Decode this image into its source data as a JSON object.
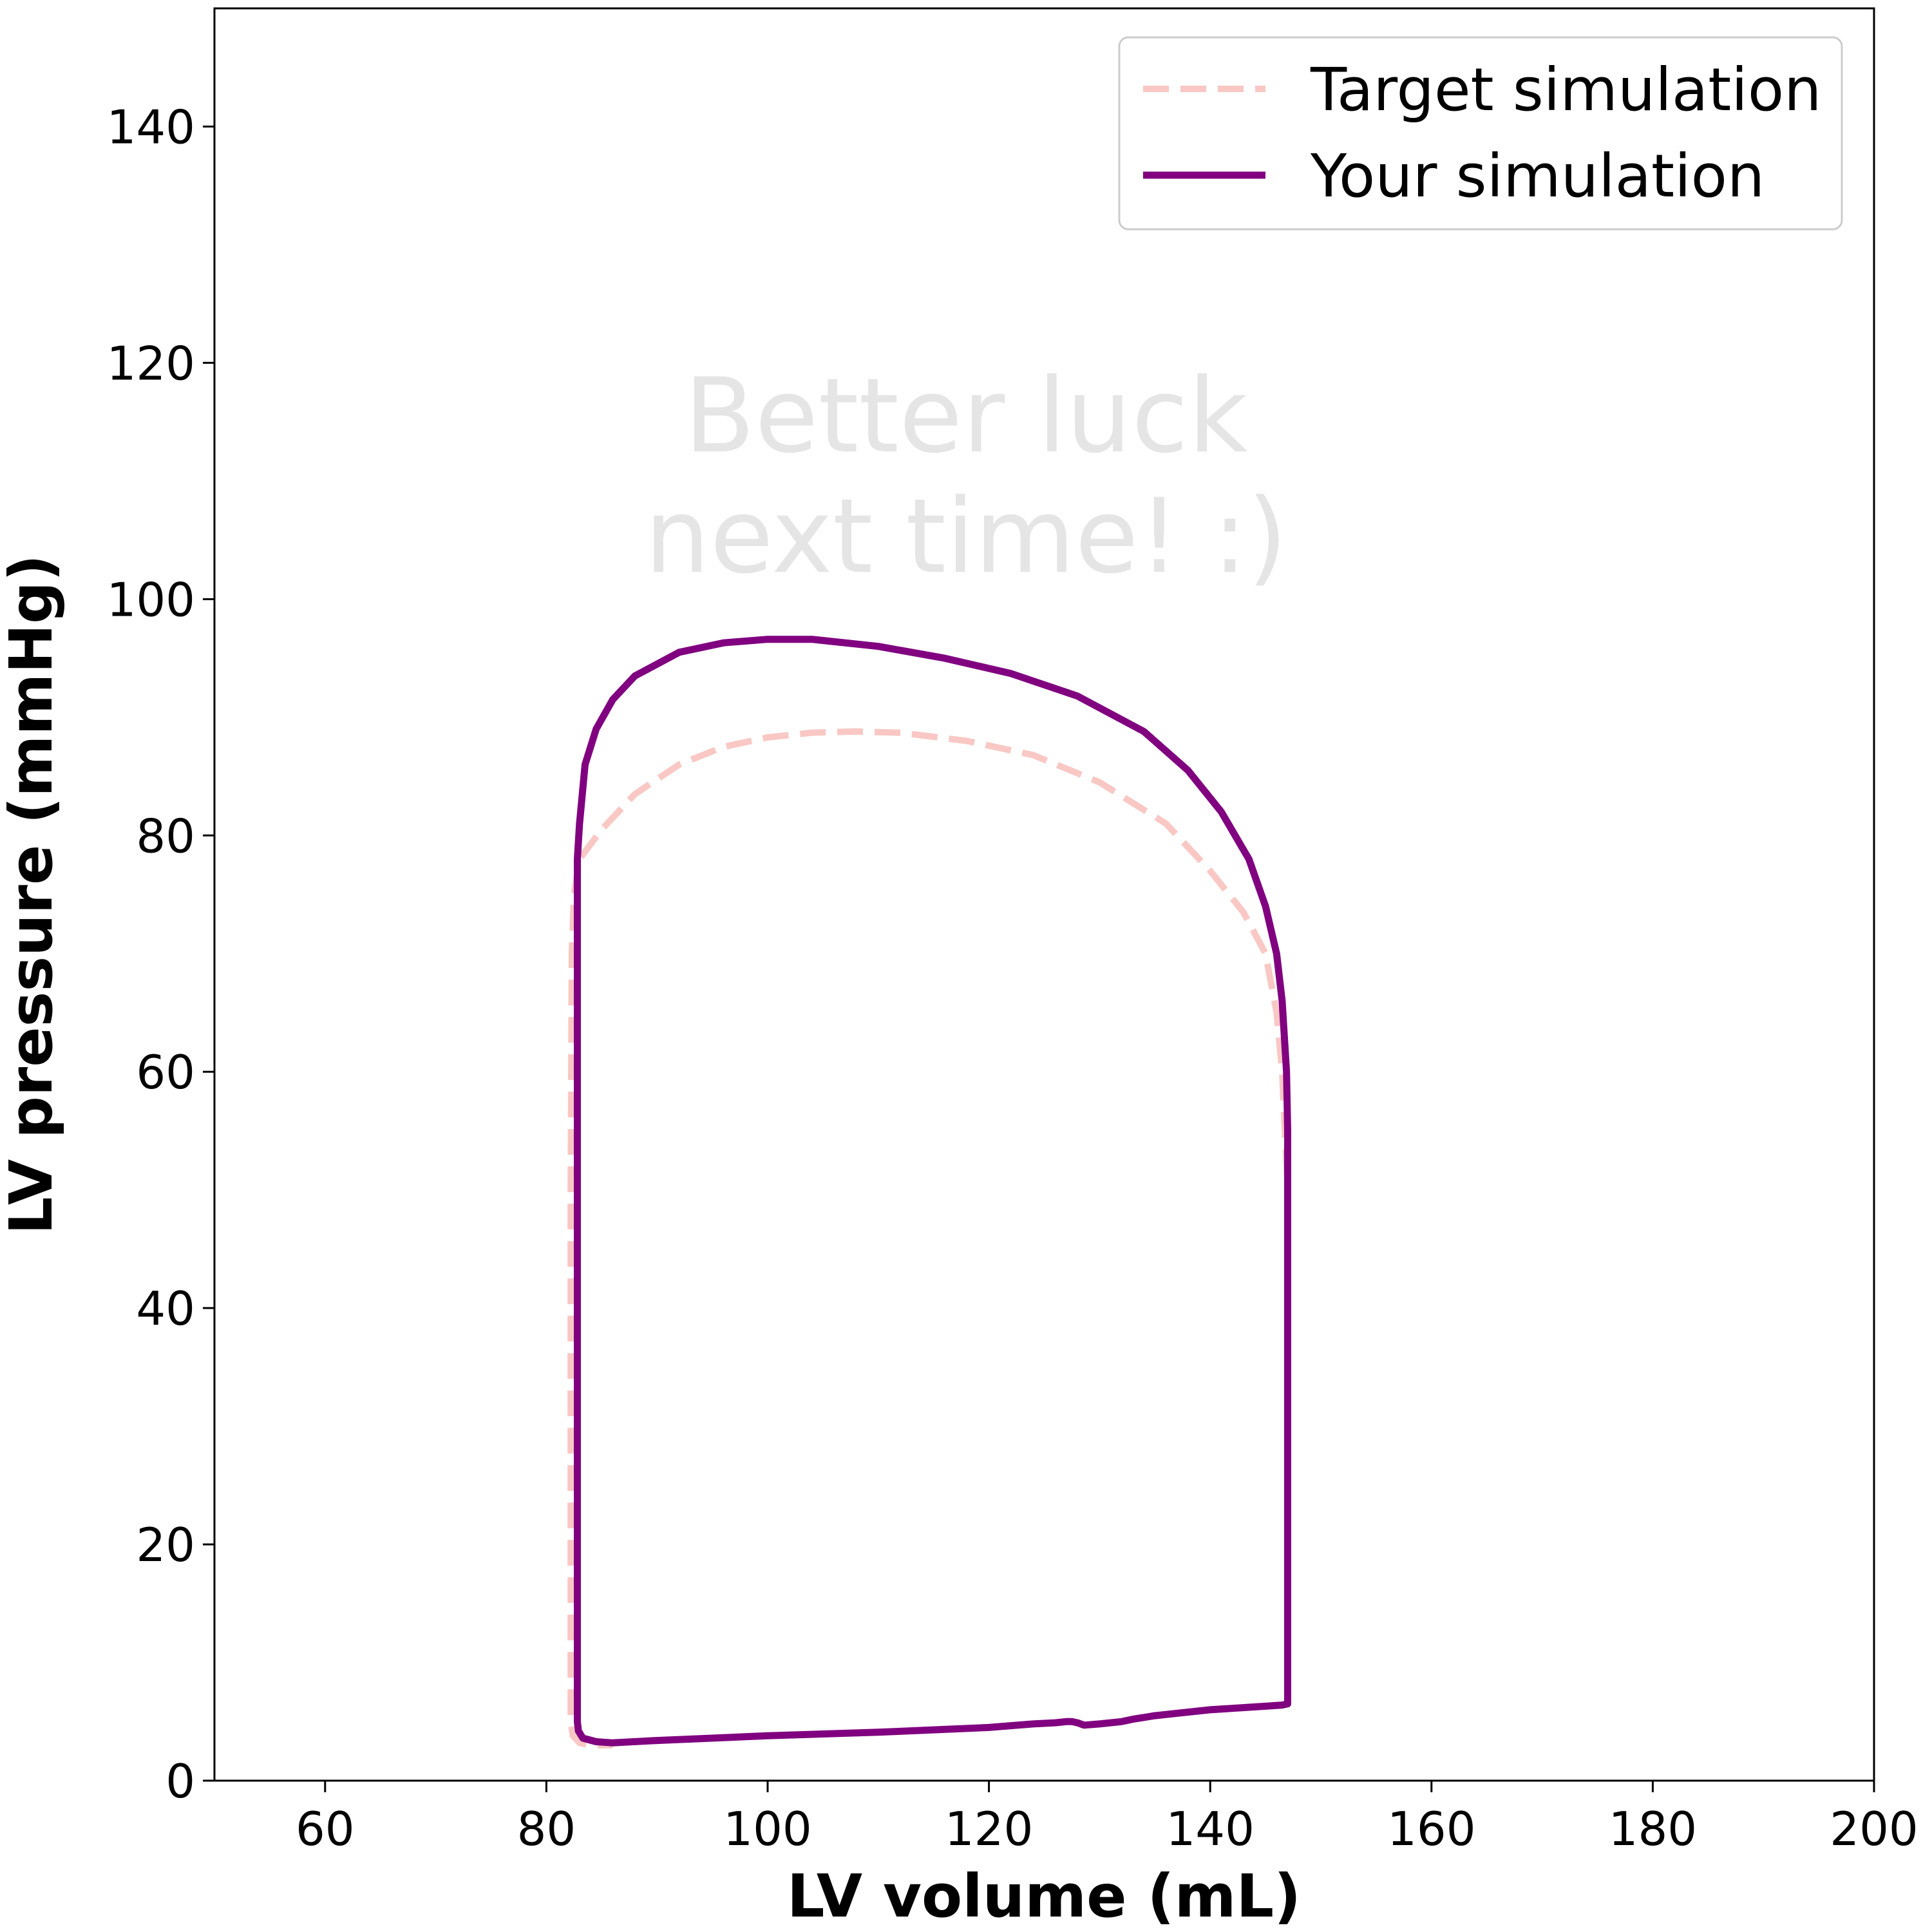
{
  "chart_data": {
    "type": "line",
    "xlabel": "LV volume (mL)",
    "ylabel": "LV pressure (mmHg)",
    "xlim": [
      50,
      200
    ],
    "ylim": [
      0,
      150
    ],
    "xticks": [
      60,
      80,
      100,
      120,
      140,
      160,
      180,
      200
    ],
    "yticks": [
      0,
      20,
      40,
      60,
      80,
      100,
      120,
      140
    ],
    "grid": false,
    "legend_position": "top-right",
    "annotation_lines": [
      "Better luck",
      "next time! :)"
    ],
    "series": [
      {
        "name": "Target simulation",
        "color": "#f9c8c4",
        "style": "dashed",
        "x": [
          147,
          147,
          147,
          146.5,
          146,
          145,
          143,
          140,
          136,
          130,
          124,
          118,
          112,
          108,
          104,
          100,
          96,
          92,
          88,
          85,
          83,
          82.5,
          82.3,
          82.2,
          82.2,
          82.2,
          82.2,
          82.2,
          82.4,
          83,
          84,
          86
        ],
        "y": [
          7,
          30,
          50,
          60,
          65,
          70,
          73.5,
          77,
          81,
          84.5,
          86.8,
          88,
          88.7,
          88.8,
          88.7,
          88.3,
          87.5,
          86,
          83.5,
          80.5,
          78,
          75,
          70,
          50,
          30,
          15,
          8,
          5,
          3.8,
          3.2,
          3,
          3
        ]
      },
      {
        "name": "Your simulation",
        "color": "#800080",
        "style": "solid",
        "x": [
          147,
          147,
          147,
          147,
          146.9,
          146.5,
          146,
          145,
          143.5,
          141,
          138,
          134,
          128,
          122,
          116,
          110,
          104,
          100,
          96,
          92,
          88,
          86,
          84.5,
          83.5,
          83,
          82.8,
          82.8,
          82.8,
          82.8,
          82.8,
          82.9,
          83.3,
          84.5,
          86,
          90,
          100,
          110,
          120,
          124,
          126,
          127,
          127.5,
          128,
          128.6,
          130,
          132,
          133,
          135,
          140,
          145,
          146.5,
          147
        ],
        "y": [
          6.5,
          7,
          30,
          55,
          60,
          66,
          70,
          74,
          78,
          82,
          85.5,
          88.8,
          91.8,
          93.7,
          95,
          96,
          96.6,
          96.6,
          96.3,
          95.5,
          93.5,
          91.5,
          89,
          86,
          81,
          78,
          60,
          30,
          10,
          5,
          4.2,
          3.6,
          3.3,
          3.2,
          3.4,
          3.8,
          4.1,
          4.5,
          4.8,
          4.9,
          5,
          5,
          4.9,
          4.7,
          4.8,
          5,
          5.2,
          5.5,
          6,
          6.3,
          6.4,
          6.5
        ]
      }
    ]
  }
}
